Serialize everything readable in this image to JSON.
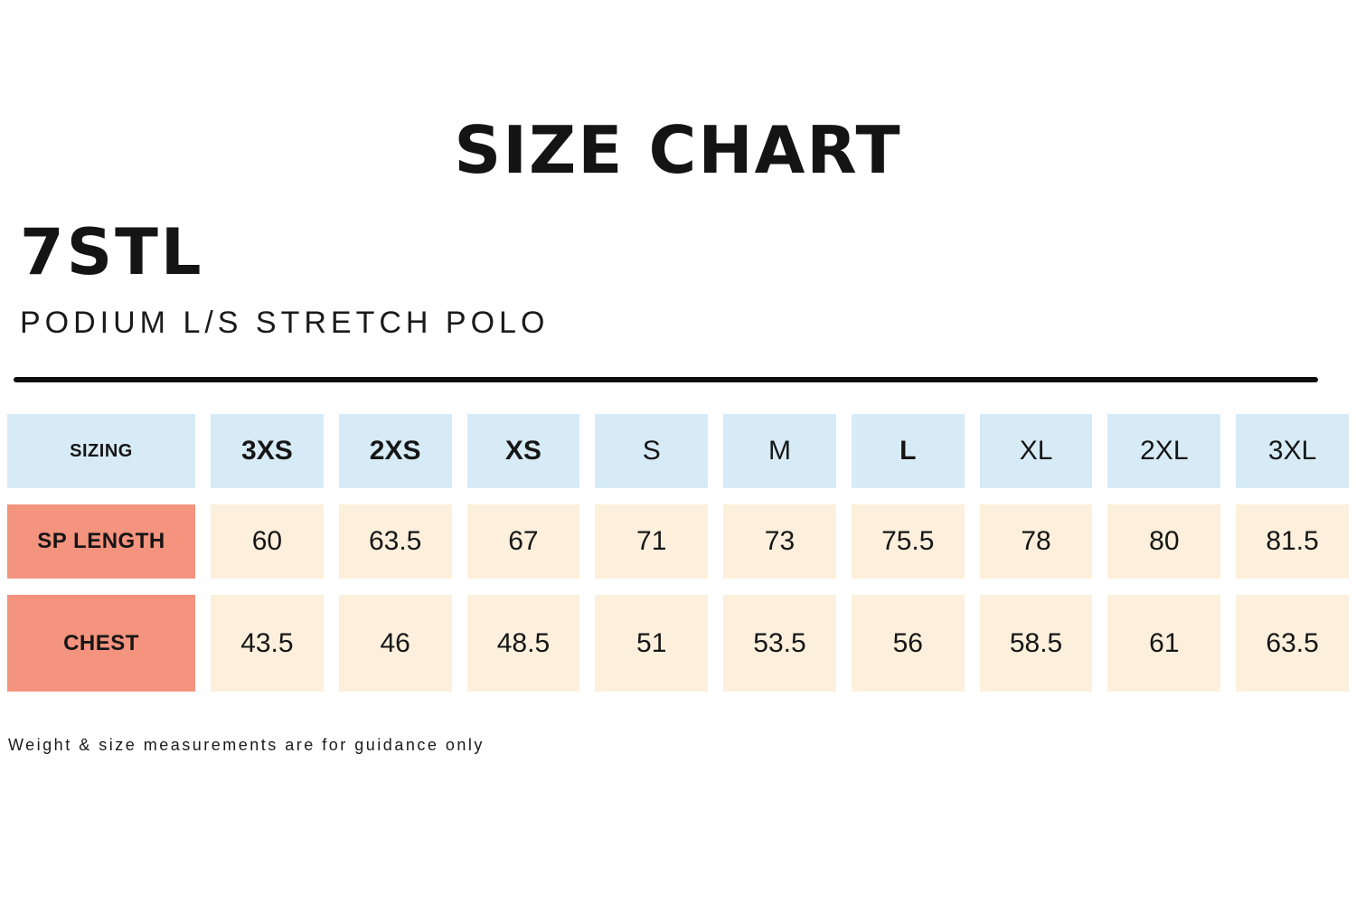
{
  "header": {
    "title": "SIZE CHART"
  },
  "product": {
    "code": "7STL",
    "name": "PODIUM L/S STRETCH POLO"
  },
  "table": {
    "corner_label": "SIZING",
    "sizes": [
      {
        "label": "3XS",
        "bold": true
      },
      {
        "label": "2XS",
        "bold": true
      },
      {
        "label": "XS",
        "bold": true
      },
      {
        "label": "S",
        "bold": false
      },
      {
        "label": "M",
        "bold": false
      },
      {
        "label": "L",
        "bold": true
      },
      {
        "label": "XL",
        "bold": false
      },
      {
        "label": "2XL",
        "bold": false
      },
      {
        "label": "3XL",
        "bold": false
      }
    ],
    "rows": [
      {
        "label": "SP LENGTH",
        "values": [
          60,
          63.5,
          67,
          71,
          73,
          75.5,
          78,
          80,
          81.5
        ]
      },
      {
        "label": "CHEST",
        "values": [
          43.5,
          46,
          48.5,
          51,
          53.5,
          56,
          58.5,
          61,
          63.5
        ]
      }
    ]
  },
  "footnote": "Weight & size measurements are for guidance only",
  "colors": {
    "background": "#FFFFFF",
    "header_cell_bg": "#D7EBF6",
    "row_label_bg": "#F4937E",
    "value_cell_bg": "#FCF0DC",
    "text": "#161616",
    "divider": "#0D0D0D"
  },
  "chart_data": {
    "type": "table",
    "title": "SIZE CHART",
    "subtitle": "7STL PODIUM L/S STRETCH POLO",
    "columns": [
      "SIZING",
      "3XS",
      "2XS",
      "XS",
      "S",
      "M",
      "L",
      "XL",
      "2XL",
      "3XL"
    ],
    "rows": [
      {
        "label": "SP LENGTH",
        "values": [
          60,
          63.5,
          67,
          71,
          73,
          75.5,
          78,
          80,
          81.5
        ]
      },
      {
        "label": "CHEST",
        "values": [
          43.5,
          46,
          48.5,
          51,
          53.5,
          56,
          58.5,
          61,
          63.5
        ]
      }
    ],
    "footnote": "Weight & size measurements are for guidance only"
  }
}
